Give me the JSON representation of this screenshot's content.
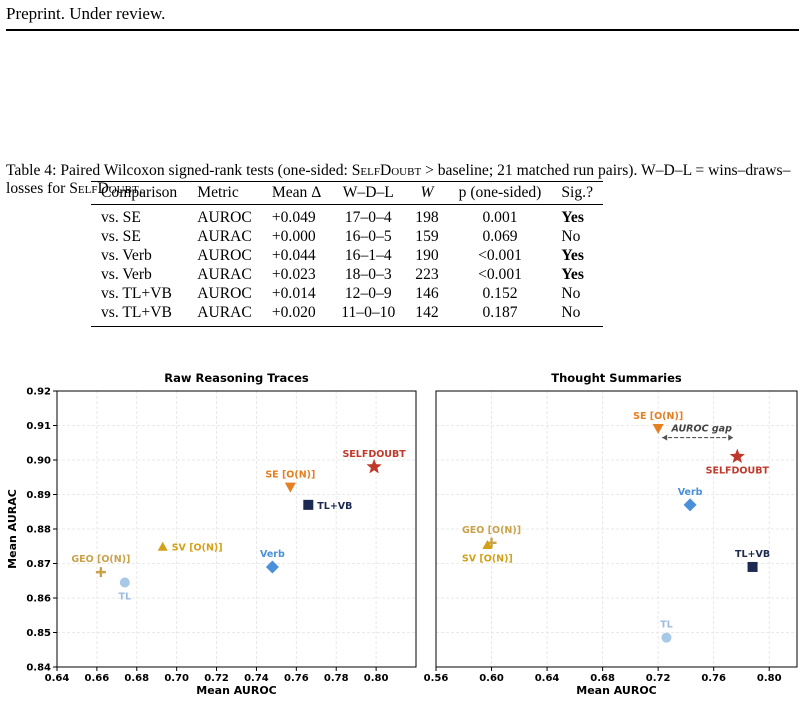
{
  "header": {
    "text": "Preprint. Under review."
  },
  "caption": {
    "prefix": "Table 4: Paired Wilcoxon signed-rank tests (one-sided: ",
    "method": "SelfDoubt",
    "mid": " > baseline; 21 matched run pairs). W–D–L = wins–draws–losses for ",
    "method2": "SelfDoubt",
    "suffix": "."
  },
  "table": {
    "headers": [
      "Comparison",
      "Metric",
      "Mean Δ",
      "W–D–L",
      "W",
      "p (one-sided)",
      "Sig.?"
    ],
    "rows": [
      [
        "vs. SE",
        "AUROC",
        "+0.049",
        "17–0–4",
        "198",
        "0.001",
        "Yes"
      ],
      [
        "vs. SE",
        "AURAC",
        "+0.000",
        "16–0–5",
        "159",
        "0.069",
        "No"
      ],
      [
        "vs. Verb",
        "AUROC",
        "+0.044",
        "16–1–4",
        "190",
        "<0.001",
        "Yes"
      ],
      [
        "vs. Verb",
        "AURAC",
        "+0.023",
        "18–0–3",
        "223",
        "<0.001",
        "Yes"
      ],
      [
        "vs. TL+VB",
        "AUROC",
        "+0.014",
        "12–0–9",
        "146",
        "0.152",
        "No"
      ],
      [
        "vs. TL+VB",
        "AURAC",
        "+0.020",
        "11–0–10",
        "142",
        "0.187",
        "No"
      ]
    ]
  },
  "chart_data": [
    {
      "type": "scatter",
      "title": "Raw Reasoning Traces",
      "xlabel": "Mean AUROC",
      "ylabel": "Mean AURAC",
      "xlim": [
        0.64,
        0.82
      ],
      "ylim": [
        0.84,
        0.92
      ],
      "xticks": [
        "0.64",
        "0.66",
        "0.68",
        "0.70",
        "0.72",
        "0.74",
        "0.76",
        "0.78",
        "0.80"
      ],
      "yticks": [
        "0.84",
        "0.85",
        "0.86",
        "0.87",
        "0.88",
        "0.89",
        "0.90",
        "0.91",
        "0.92"
      ],
      "grid": true,
      "points": [
        {
          "label": "SELFDOUBT",
          "x": 0.799,
          "y": 0.898,
          "marker": "star",
          "color": "#c0392b",
          "label_pos": "above"
        },
        {
          "label": "SE [O(N)]",
          "x": 0.757,
          "y": 0.892,
          "marker": "triangle-down",
          "color": "#e67e22",
          "label_pos": "above"
        },
        {
          "label": "TL+VB",
          "x": 0.766,
          "y": 0.887,
          "marker": "square",
          "color": "#1c2951",
          "label_pos": "right"
        },
        {
          "label": "SV [O(N)]",
          "x": 0.693,
          "y": 0.875,
          "marker": "triangle-up",
          "color": "#d4a017",
          "label_pos": "right"
        },
        {
          "label": "Verb",
          "x": 0.748,
          "y": 0.869,
          "marker": "diamond",
          "color": "#4a8fd9",
          "label_pos": "above"
        },
        {
          "label": "GEO [O(N)]",
          "x": 0.662,
          "y": 0.8675,
          "marker": "plus",
          "color": "#c9a24a",
          "label_pos": "above"
        },
        {
          "label": "TL",
          "x": 0.674,
          "y": 0.8645,
          "marker": "circle",
          "color": "#a8c8e8",
          "label_pos": "below"
        }
      ]
    },
    {
      "type": "scatter",
      "title": "Thought Summaries",
      "xlabel": "Mean AUROC",
      "ylabel": "",
      "xlim": [
        0.56,
        0.82
      ],
      "ylim": [
        0.84,
        0.92
      ],
      "xticks": [
        "0.56",
        "0.60",
        "0.64",
        "0.68",
        "0.72",
        "0.76",
        "0.80"
      ],
      "grid": true,
      "annotation": "AUROC gap",
      "gap_span": [
        0.72,
        0.777
      ],
      "gap_y": 0.9065,
      "points": [
        {
          "label": "SE [O(N)]",
          "x": 0.72,
          "y": 0.909,
          "marker": "triangle-down",
          "color": "#e67e22",
          "label_pos": "above"
        },
        {
          "label": "SELFDOUBT",
          "x": 0.777,
          "y": 0.901,
          "marker": "star",
          "color": "#c0392b",
          "label_pos": "below"
        },
        {
          "label": "Verb",
          "x": 0.743,
          "y": 0.887,
          "marker": "diamond",
          "color": "#4a8fd9",
          "label_pos": "above"
        },
        {
          "label": "GEO [O(N)]",
          "x": 0.6,
          "y": 0.876,
          "marker": "plus",
          "color": "#c9a24a",
          "label_pos": "above"
        },
        {
          "label": "SV [O(N)]",
          "x": 0.597,
          "y": 0.8755,
          "marker": "triangle-up",
          "color": "#d4a017",
          "label_pos": "below"
        },
        {
          "label": "TL+VB",
          "x": 0.788,
          "y": 0.869,
          "marker": "square",
          "color": "#1c2951",
          "label_pos": "above"
        },
        {
          "label": "TL",
          "x": 0.726,
          "y": 0.8485,
          "marker": "circle",
          "color": "#a8c8e8",
          "label_pos": "above"
        }
      ]
    }
  ]
}
